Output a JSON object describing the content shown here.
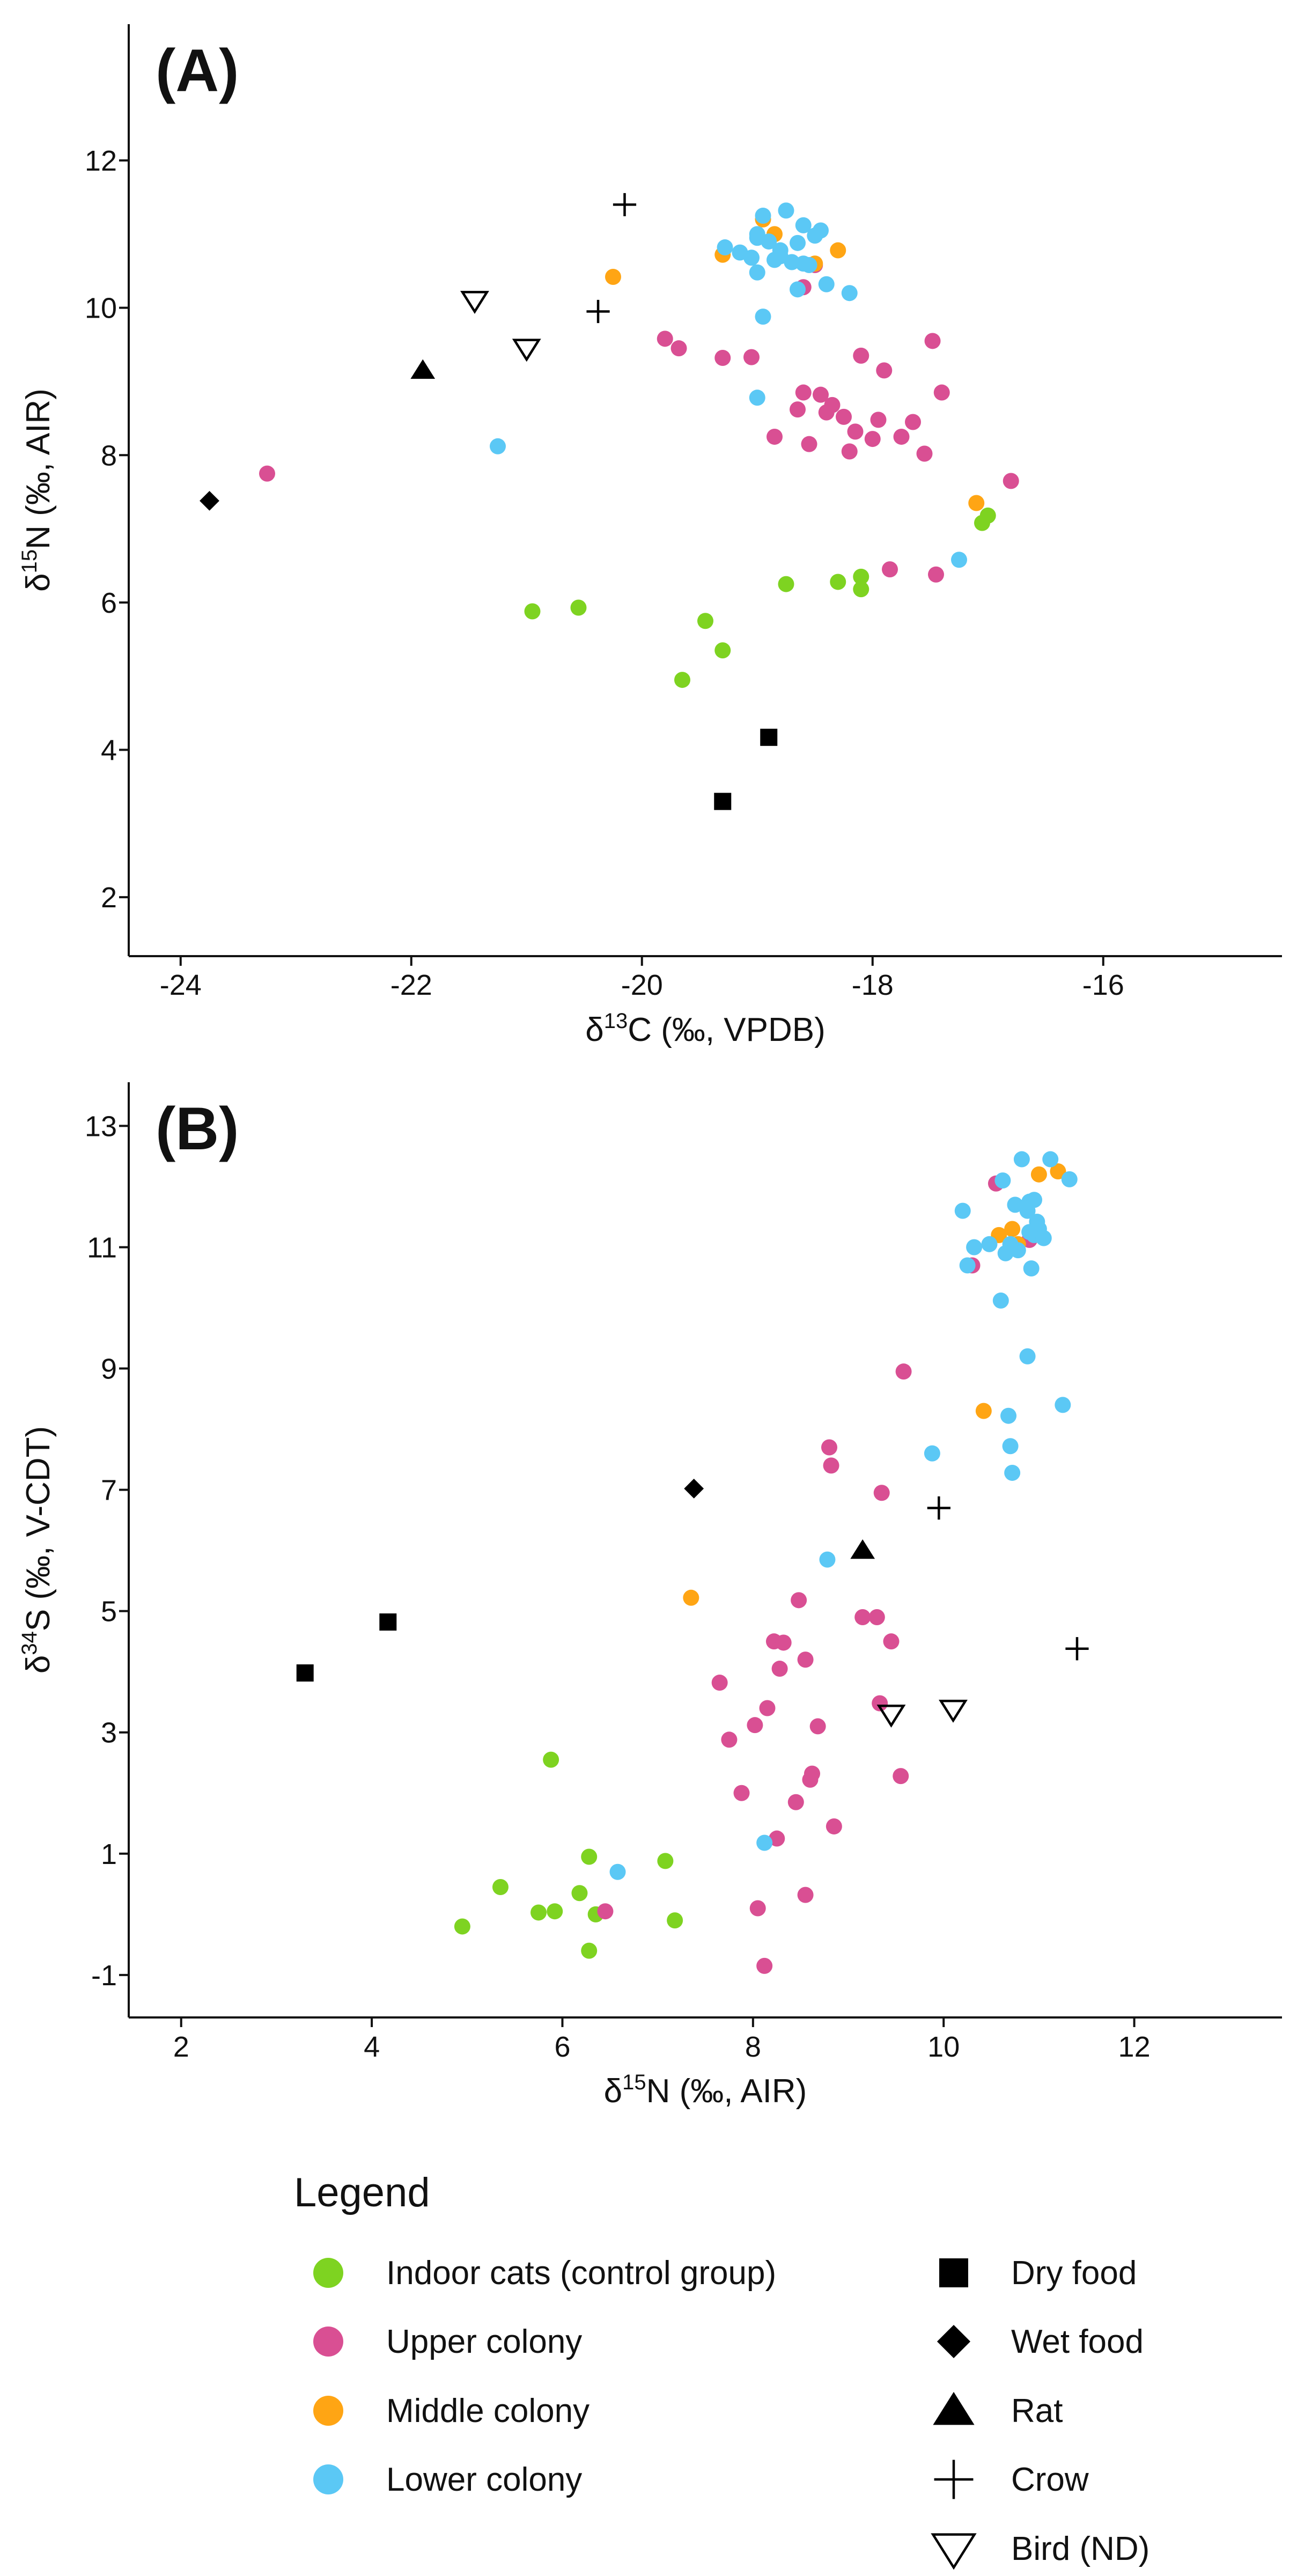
{
  "colors": {
    "indoor": "#7ed321",
    "upper": "#d94f93",
    "middle": "#ffa514",
    "lower": "#5bc8f5",
    "marker": "#000000"
  },
  "chart_data": [
    {
      "panel": "(A)",
      "type": "scatter",
      "xlabel_prefix": "δ",
      "xlabel_sup": "13",
      "xlabel_suffix": "C (‰, VPDB)",
      "ylabel_prefix": "δ",
      "ylabel_sup": "15",
      "ylabel_suffix": "N (‰, AIR)",
      "xlim": [
        -24.45,
        -14.45
      ],
      "ylim": [
        1.2,
        13.85
      ],
      "xticks": [
        -24,
        -22,
        -20,
        -18,
        -16
      ],
      "xtick_labels": [
        "-24",
        "-22",
        "-20",
        "-18",
        "-16"
      ],
      "yticks": [
        2,
        4,
        6,
        8,
        10,
        12
      ],
      "ytick_labels": [
        "2",
        "4",
        "6",
        "8",
        "10",
        "12"
      ],
      "series": [
        {
          "name": "Indoor cats (control group)",
          "key": "indoor",
          "marker": "circle",
          "x": [
            -20.95,
            -20.55,
            -19.45,
            -19.3,
            -19.65,
            -18.75,
            -18.3,
            -18.1,
            -18.1,
            -17.05,
            -17.0
          ],
          "y": [
            5.88,
            5.93,
            5.75,
            5.35,
            4.95,
            6.25,
            6.28,
            6.35,
            6.18,
            7.08,
            7.18
          ]
        },
        {
          "name": "Upper colony",
          "key": "upper",
          "marker": "circle",
          "x": [
            -23.25,
            -19.8,
            -19.68,
            -19.3,
            -19.05,
            -18.6,
            -18.65,
            -18.45,
            -18.4,
            -18.35,
            -18.2,
            -18.25,
            -18.15,
            -18.1,
            -18.0,
            -17.95,
            -17.85,
            -17.75,
            -17.65,
            -17.55,
            -17.48,
            -17.4,
            -16.8,
            -18.5,
            -18.6,
            -17.9,
            -18.55,
            -18.85,
            -17.45
          ],
          "y": [
            7.75,
            9.58,
            9.45,
            9.32,
            9.33,
            8.85,
            8.62,
            8.82,
            8.58,
            8.68,
            8.05,
            8.52,
            8.32,
            9.35,
            8.22,
            8.48,
            6.45,
            8.25,
            8.45,
            8.02,
            9.55,
            8.85,
            7.65,
            10.58,
            10.28,
            9.15,
            8.15,
            8.25,
            6.38
          ]
        },
        {
          "name": "Middle colony",
          "key": "middle",
          "marker": "circle",
          "x": [
            -20.25,
            -19.3,
            -18.95,
            -18.85,
            -18.5,
            -18.3,
            -17.1
          ],
          "y": [
            10.42,
            10.72,
            11.2,
            11.0,
            10.6,
            10.78,
            7.35
          ]
        },
        {
          "name": "Lower colony",
          "key": "lower",
          "marker": "circle",
          "x": [
            -21.25,
            -19.28,
            -19.15,
            -19.05,
            -19.0,
            -18.9,
            -18.8,
            -18.7,
            -18.65,
            -18.55,
            -18.45,
            -18.95,
            -18.85,
            -18.75,
            -18.6,
            -18.5,
            -18.4,
            -19.0,
            -18.95,
            -18.65,
            -18.2,
            -19.0,
            -19.0,
            -17.25,
            -18.6,
            -18.8
          ],
          "y": [
            8.12,
            10.82,
            10.75,
            10.68,
            10.95,
            10.9,
            10.78,
            10.62,
            10.88,
            10.58,
            11.05,
            11.25,
            10.65,
            11.32,
            11.12,
            10.98,
            10.32,
            10.48,
            9.88,
            10.25,
            10.2,
            8.78,
            11.0,
            6.58,
            10.6,
            10.7
          ]
        },
        {
          "name": "Dry food",
          "key": "marker",
          "marker": "square",
          "x": [
            -19.3,
            -18.9
          ],
          "y": [
            3.3,
            4.17
          ]
        },
        {
          "name": "Wet food",
          "key": "marker",
          "marker": "diamond",
          "x": [
            -23.75
          ],
          "y": [
            7.38
          ]
        },
        {
          "name": "Rat",
          "key": "marker",
          "marker": "triangle-up",
          "x": [
            -21.9
          ],
          "y": [
            9.15
          ]
        },
        {
          "name": "Crow",
          "key": "marker",
          "marker": "plus",
          "x": [
            -20.15,
            -20.38
          ],
          "y": [
            11.4,
            9.95
          ]
        },
        {
          "name": "Bird (ND)",
          "key": "marker",
          "marker": "triangle-down",
          "x": [
            -21.45,
            -21.0
          ],
          "y": [
            10.1,
            9.45
          ]
        }
      ]
    },
    {
      "panel": "(B)",
      "type": "scatter",
      "xlabel_prefix": "δ",
      "xlabel_sup": "15",
      "xlabel_suffix": "N (‰, AIR)",
      "ylabel_prefix": "δ",
      "ylabel_sup": "34",
      "ylabel_suffix": "S (‰, V-CDT)",
      "xlim": [
        1.45,
        13.55
      ],
      "ylim": [
        -1.7,
        13.72
      ],
      "xticks": [
        2,
        4,
        6,
        8,
        10,
        12
      ],
      "xtick_labels": [
        "2",
        "4",
        "6",
        "8",
        "10",
        "12"
      ],
      "yticks": [
        -1,
        1,
        3,
        5,
        7,
        9,
        11,
        13
      ],
      "ytick_labels": [
        "-1",
        "1",
        "3",
        "5",
        "7",
        "9",
        "11",
        "13"
      ],
      "series": [
        {
          "name": "Indoor cats (control group)",
          "key": "indoor",
          "marker": "circle",
          "x": [
            4.95,
            5.35,
            5.75,
            5.92,
            6.18,
            6.28,
            6.35,
            6.28,
            7.08,
            7.18,
            5.88
          ],
          "y": [
            -0.2,
            0.45,
            0.03,
            0.05,
            0.35,
            0.95,
            0.0,
            -0.6,
            0.88,
            -0.1,
            2.55
          ]
        },
        {
          "name": "Upper colony",
          "key": "upper",
          "marker": "circle",
          "x": [
            6.45,
            7.65,
            7.75,
            7.88,
            8.02,
            8.05,
            8.15,
            8.22,
            8.25,
            8.28,
            8.32,
            8.45,
            8.48,
            8.55,
            8.55,
            8.6,
            8.62,
            8.68,
            8.8,
            8.82,
            8.85,
            9.15,
            9.3,
            9.33,
            9.35,
            9.45,
            9.55,
            9.58,
            10.3,
            10.55,
            10.9,
            8.12
          ],
          "y": [
            0.05,
            3.82,
            2.88,
            2.0,
            3.12,
            0.1,
            3.4,
            4.5,
            1.25,
            4.05,
            4.48,
            1.85,
            5.18,
            4.2,
            0.32,
            2.22,
            2.32,
            3.1,
            7.7,
            7.4,
            1.45,
            4.9,
            4.9,
            3.48,
            6.95,
            4.5,
            2.28,
            8.95,
            10.7,
            12.05,
            11.12,
            -0.85
          ]
        },
        {
          "name": "Middle colony",
          "key": "middle",
          "marker": "circle",
          "x": [
            7.35,
            10.42,
            10.58,
            10.72,
            10.78,
            11.0,
            11.2
          ],
          "y": [
            5.22,
            8.3,
            11.2,
            11.3,
            11.05,
            12.2,
            12.25
          ]
        },
        {
          "name": "Lower colony",
          "key": "lower",
          "marker": "circle",
          "x": [
            6.58,
            8.12,
            8.78,
            9.88,
            10.2,
            10.25,
            10.32,
            10.48,
            10.6,
            10.62,
            10.68,
            10.7,
            10.72,
            10.75,
            10.82,
            10.88,
            10.9,
            10.92,
            10.95,
            10.98,
            11.0,
            11.12,
            11.25,
            11.32,
            10.7,
            10.88,
            10.95,
            10.65,
            10.9,
            11.05,
            10.78
          ],
          "y": [
            0.7,
            1.18,
            5.85,
            7.6,
            11.6,
            10.7,
            11.0,
            11.05,
            10.12,
            12.1,
            8.22,
            7.72,
            7.28,
            11.7,
            12.45,
            9.2,
            11.75,
            10.65,
            11.2,
            11.42,
            11.3,
            12.45,
            8.4,
            12.12,
            11.05,
            11.6,
            11.78,
            10.9,
            11.25,
            11.15,
            10.95
          ]
        },
        {
          "name": "Dry food",
          "key": "marker",
          "marker": "square",
          "x": [
            3.3,
            4.17
          ],
          "y": [
            3.98,
            4.82
          ]
        },
        {
          "name": "Wet food",
          "key": "marker",
          "marker": "diamond",
          "x": [
            7.38
          ],
          "y": [
            7.02
          ]
        },
        {
          "name": "Rat",
          "key": "marker",
          "marker": "triangle-up",
          "x": [
            9.15
          ],
          "y": [
            6.0
          ]
        },
        {
          "name": "Crow",
          "key": "marker",
          "marker": "plus",
          "x": [
            9.95,
            11.4
          ],
          "y": [
            6.7,
            4.38
          ]
        },
        {
          "name": "Bird (ND)",
          "key": "marker",
          "marker": "triangle-down",
          "x": [
            9.45,
            10.1
          ],
          "y": [
            3.3,
            3.38
          ]
        }
      ]
    }
  ],
  "legend": {
    "title": "Legend",
    "items": [
      {
        "label": "Indoor cats (control group)",
        "marker": "circle",
        "key": "indoor"
      },
      {
        "label": "Upper colony",
        "marker": "circle",
        "key": "upper"
      },
      {
        "label": "Middle colony",
        "marker": "circle",
        "key": "middle"
      },
      {
        "label": "Lower colony",
        "marker": "circle",
        "key": "lower"
      },
      {
        "label": "Dry food",
        "marker": "square",
        "key": "marker"
      },
      {
        "label": "Wet food",
        "marker": "diamond",
        "key": "marker"
      },
      {
        "label": "Rat",
        "marker": "triangle-up",
        "key": "marker"
      },
      {
        "label": "Crow",
        "marker": "plus",
        "key": "marker"
      },
      {
        "label": "Bird (ND)",
        "marker": "triangle-down",
        "key": "marker"
      }
    ]
  }
}
